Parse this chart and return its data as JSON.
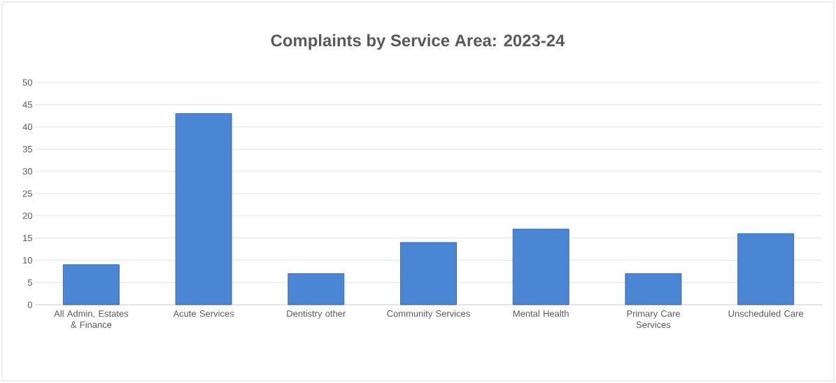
{
  "chart_data": {
    "type": "bar",
    "title": "Complaints by Service Area: 2023-24",
    "categories": [
      "All Admin, Estates & Finance",
      "Acute Services",
      "Dentistry other",
      "Community Services",
      "Mental Health",
      "Primary Care Services",
      "Unscheduled Care"
    ],
    "values": [
      9,
      43,
      7,
      14,
      17,
      7,
      16
    ],
    "color": "#4a86d4",
    "ylim": [
      0,
      50
    ],
    "yticks": [
      0,
      5,
      10,
      15,
      20,
      25,
      30,
      35,
      40,
      45,
      50
    ],
    "grid": "y"
  }
}
